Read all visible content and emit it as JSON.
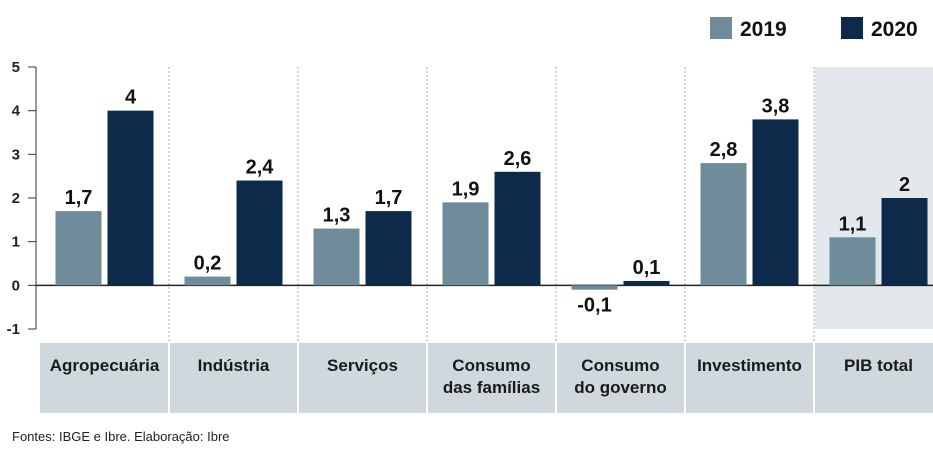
{
  "chart_data": {
    "type": "bar",
    "title": "",
    "xlabel": "",
    "ylabel": "",
    "ylim": [
      -1,
      5
    ],
    "yticks": [
      5,
      4,
      3,
      2,
      1,
      0,
      -1
    ],
    "grid": true,
    "legend_position": "top-right",
    "categories": [
      [
        "Agropecuária"
      ],
      [
        "Indústria"
      ],
      [
        "Serviços"
      ],
      [
        "Consumo",
        "das famílias"
      ],
      [
        "Consumo",
        "do governo"
      ],
      [
        "Investimento"
      ],
      [
        "PIB total"
      ]
    ],
    "series": [
      {
        "name": "2019",
        "color": "#6f8c9a",
        "values": [
          1.7,
          0.2,
          1.3,
          1.9,
          -0.1,
          2.8,
          1.1
        ],
        "labels": [
          "1,7",
          "0,2",
          "1,3",
          "1,9",
          "-0,1",
          "2,8",
          "1,1"
        ]
      },
      {
        "name": "2020",
        "color": "#0d2a4a",
        "values": [
          4,
          2.4,
          1.7,
          2.6,
          0.1,
          3.8,
          2
        ],
        "labels": [
          "4",
          "2,4",
          "1,7",
          "2,6",
          "0,1",
          "3,8",
          "2"
        ]
      }
    ],
    "highlight_category": "PIB total",
    "source": "Fontes: IBGE e Ibre. Elaboração: Ibre"
  },
  "colors": {
    "category_band": "#cfd8dd",
    "highlight_panel": "#e2e8ec",
    "gridline": "#aaaaaa"
  }
}
